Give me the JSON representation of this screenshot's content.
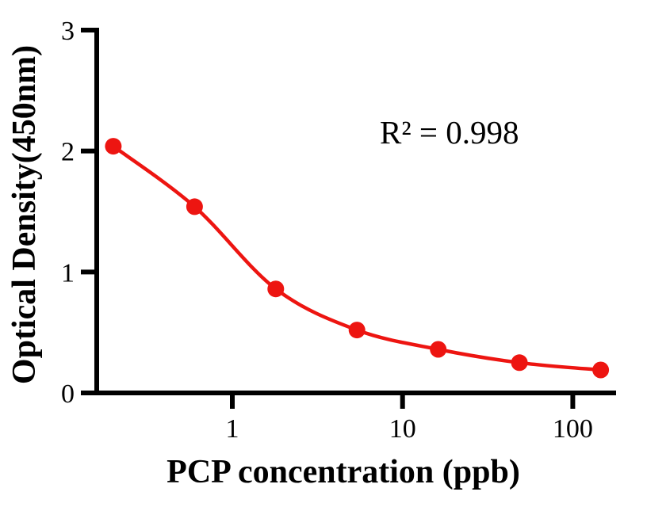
{
  "figure": {
    "xlabel": "PCP concentration (ppb)",
    "ylabel": "Optical Density(450nm)",
    "annotation": "R² = 0.998"
  },
  "chart_data": {
    "type": "scatter",
    "subtype": "dose-response standard curve with smooth fit line",
    "title": "",
    "xlabel": "PCP concentration (ppb)",
    "ylabel": "Optical Density(450nm)",
    "annotation": "R² = 0.998",
    "x_scale": "log10",
    "x": [
      0.2,
      0.6,
      1.8,
      5.4,
      16.2,
      48.6,
      145.8
    ],
    "y": [
      2.04,
      1.54,
      0.86,
      0.52,
      0.36,
      0.25,
      0.19
    ],
    "x_ticks": [
      1,
      10,
      100
    ],
    "x_tick_labels": [
      "1",
      "10",
      "100"
    ],
    "y_ticks": [
      0,
      1,
      2,
      3
    ],
    "y_tick_labels": [
      "0",
      "1",
      "2",
      "3"
    ],
    "xlim": [
      0.16,
      180
    ],
    "ylim": [
      0,
      3
    ],
    "grid": false,
    "legend": "none",
    "marker": "filled-circle",
    "series_color": "#ED1511",
    "axis_color": "#000000"
  }
}
